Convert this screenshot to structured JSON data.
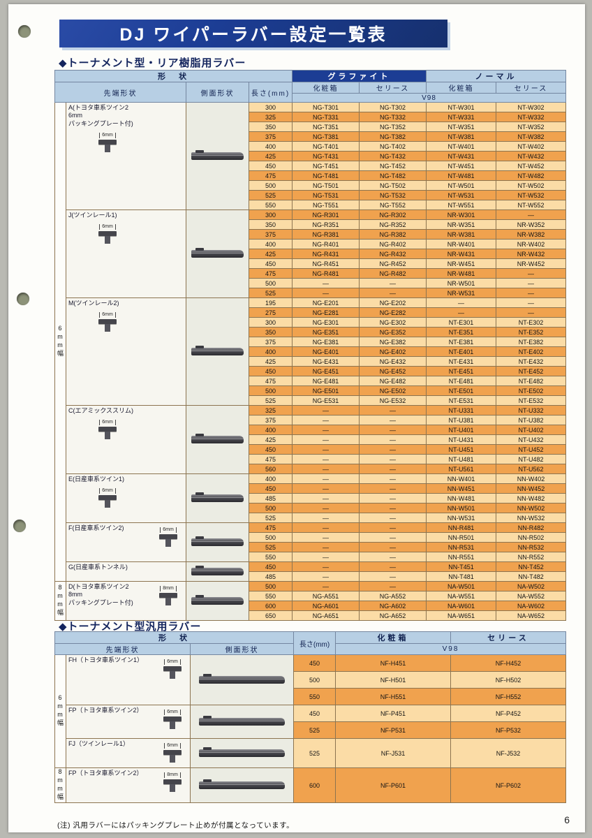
{
  "page": {
    "title": "DJ ワイパーラバー設定一覧表",
    "page_number": "6",
    "footnote": "(注) 汎用ラバーにはパッキングプレート止めが付属となっています。"
  },
  "colors": {
    "banner_navy": "#1c3d94",
    "header_blue": "#b7cfe4",
    "row_orange_dark": "#f0a24e",
    "row_orange_light": "#fbdca6"
  },
  "table1": {
    "section_title": "◆トーナメント型・リア樹脂用ラバー",
    "headers": {
      "shape": "形　状",
      "tip": "先端形状",
      "side": "側面形状",
      "length": "長さ(mm)",
      "graphite": "グラファイト",
      "normal": "ノーマル",
      "box": "化粧箱",
      "series": "セリース",
      "v98": "V98"
    },
    "width_bands": [
      {
        "label": "6mm幅",
        "group_indexes": [
          0,
          1,
          2,
          3,
          4,
          5,
          6
        ]
      },
      {
        "label": "8mm幅",
        "group_indexes": [
          7
        ]
      }
    ],
    "groups": [
      {
        "label": "A(トヨタ車系ツイン2\n6mm\nパッキングプレート付)",
        "tip_size": "6mm",
        "rows": [
          {
            "len": "300",
            "codes": [
              "NG-T301",
              "NG-T302",
              "NT-W301",
              "NT-W302"
            ]
          },
          {
            "len": "325",
            "codes": [
              "NG-T331",
              "NG-T332",
              "NT-W331",
              "NT-W332"
            ]
          },
          {
            "len": "350",
            "codes": [
              "NG-T351",
              "NG-T352",
              "NT-W351",
              "NT-W352"
            ]
          },
          {
            "len": "375",
            "codes": [
              "NG-T381",
              "NG-T382",
              "NT-W381",
              "NT-W382"
            ]
          },
          {
            "len": "400",
            "codes": [
              "NG-T401",
              "NG-T402",
              "NT-W401",
              "NT-W402"
            ]
          },
          {
            "len": "425",
            "codes": [
              "NG-T431",
              "NG-T432",
              "NT-W431",
              "NT-W432"
            ]
          },
          {
            "len": "450",
            "codes": [
              "NG-T451",
              "NG-T452",
              "NT-W451",
              "NT-W452"
            ]
          },
          {
            "len": "475",
            "codes": [
              "NG-T481",
              "NG-T482",
              "NT-W481",
              "NT-W482"
            ]
          },
          {
            "len": "500",
            "codes": [
              "NG-T501",
              "NG-T502",
              "NT-W501",
              "NT-W502"
            ]
          },
          {
            "len": "525",
            "codes": [
              "NG-T531",
              "NG-T532",
              "NT-W531",
              "NT-W532"
            ]
          },
          {
            "len": "550",
            "codes": [
              "NG-T551",
              "NG-T552",
              "NT-W551",
              "NT-W552"
            ]
          }
        ]
      },
      {
        "label": "J(ツインレール1)",
        "tip_size": "6mm",
        "rows": [
          {
            "len": "300",
            "codes": [
              "NG-R301",
              "NG-R302",
              "NR-W301",
              "—"
            ]
          },
          {
            "len": "350",
            "codes": [
              "NG-R351",
              "NG-R352",
              "NR-W351",
              "NR-W352"
            ]
          },
          {
            "len": "375",
            "codes": [
              "NG-R381",
              "NG-R382",
              "NR-W381",
              "NR-W382"
            ]
          },
          {
            "len": "400",
            "codes": [
              "NG-R401",
              "NG-R402",
              "NR-W401",
              "NR-W402"
            ]
          },
          {
            "len": "425",
            "codes": [
              "NG-R431",
              "NG-R432",
              "NR-W431",
              "NR-W432"
            ]
          },
          {
            "len": "450",
            "codes": [
              "NG-R451",
              "NG-R452",
              "NR-W451",
              "NR-W452"
            ]
          },
          {
            "len": "475",
            "codes": [
              "NG-R481",
              "NG-R482",
              "NR-W481",
              "—"
            ]
          },
          {
            "len": "500",
            "codes": [
              "—",
              "—",
              "NR-W501",
              "—"
            ]
          },
          {
            "len": "525",
            "codes": [
              "—",
              "—",
              "NR-W531",
              "—"
            ]
          }
        ]
      },
      {
        "label": "M(ツインレール2)",
        "tip_size": "6mm",
        "rows": [
          {
            "len": "195",
            "codes": [
              "NG-E201",
              "NG-E202",
              "—",
              "—"
            ]
          },
          {
            "len": "275",
            "codes": [
              "NG-E281",
              "NG-E282",
              "—",
              "—"
            ]
          },
          {
            "len": "300",
            "codes": [
              "NG-E301",
              "NG-E302",
              "NT-E301",
              "NT-E302"
            ]
          },
          {
            "len": "350",
            "codes": [
              "NG-E351",
              "NG-E352",
              "NT-E351",
              "NT-E352"
            ]
          },
          {
            "len": "375",
            "codes": [
              "NG-E381",
              "NG-E382",
              "NT-E381",
              "NT-E382"
            ]
          },
          {
            "len": "400",
            "codes": [
              "NG-E401",
              "NG-E402",
              "NT-E401",
              "NT-E402"
            ]
          },
          {
            "len": "425",
            "codes": [
              "NG-E431",
              "NG-E432",
              "NT-E431",
              "NT-E432"
            ]
          },
          {
            "len": "450",
            "codes": [
              "NG-E451",
              "NG-E452",
              "NT-E451",
              "NT-E452"
            ]
          },
          {
            "len": "475",
            "codes": [
              "NG-E481",
              "NG-E482",
              "NT-E481",
              "NT-E482"
            ]
          },
          {
            "len": "500",
            "codes": [
              "NG-E501",
              "NG-E502",
              "NT-E501",
              "NT-E502"
            ]
          },
          {
            "len": "525",
            "codes": [
              "NG-E531",
              "NG-E532",
              "NT-E531",
              "NT-E532"
            ]
          }
        ]
      },
      {
        "label": "C(エアミックススリム)",
        "tip_size": "6mm",
        "rows": [
          {
            "len": "325",
            "codes": [
              "—",
              "—",
              "NT-U331",
              "NT-U332"
            ]
          },
          {
            "len": "375",
            "codes": [
              "—",
              "—",
              "NT-U381",
              "NT-U382"
            ]
          },
          {
            "len": "400",
            "codes": [
              "—",
              "—",
              "NT-U401",
              "NT-U402"
            ]
          },
          {
            "len": "425",
            "codes": [
              "—",
              "—",
              "NT-U431",
              "NT-U432"
            ]
          },
          {
            "len": "450",
            "codes": [
              "—",
              "—",
              "NT-U451",
              "NT-U452"
            ]
          },
          {
            "len": "475",
            "codes": [
              "—",
              "—",
              "NT-U481",
              "NT-U482"
            ]
          },
          {
            "len": "560",
            "codes": [
              "—",
              "—",
              "NT-U561",
              "NT-U562"
            ]
          }
        ]
      },
      {
        "label": "E(日産車系ツイン1)",
        "tip_size": "6mm",
        "rows": [
          {
            "len": "400",
            "codes": [
              "—",
              "—",
              "NN-W401",
              "NN-W402"
            ]
          },
          {
            "len": "450",
            "codes": [
              "—",
              "—",
              "NN-W451",
              "NN-W452"
            ]
          },
          {
            "len": "485",
            "codes": [
              "—",
              "—",
              "NN-W481",
              "NN-W482"
            ]
          },
          {
            "len": "500",
            "codes": [
              "—",
              "—",
              "NN-W501",
              "NN-W502"
            ]
          },
          {
            "len": "525",
            "codes": [
              "—",
              "—",
              "NN-W531",
              "NN-W532"
            ]
          }
        ]
      },
      {
        "label": "F(日産車系ツイン2)",
        "tip_size": "6mm",
        "rows": [
          {
            "len": "475",
            "codes": [
              "—",
              "—",
              "NN-R481",
              "NN-R482"
            ]
          },
          {
            "len": "500",
            "codes": [
              "—",
              "—",
              "NN-R501",
              "NN-R502"
            ]
          },
          {
            "len": "525",
            "codes": [
              "—",
              "—",
              "NN-R531",
              "NN-R532"
            ]
          },
          {
            "len": "550",
            "codes": [
              "—",
              "—",
              "NN-R551",
              "NN-R552"
            ]
          }
        ]
      },
      {
        "label": "G(日産車系トンネル)",
        "tip_size": null,
        "rows": [
          {
            "len": "450",
            "codes": [
              "—",
              "—",
              "NN-T451",
              "NN-T452"
            ]
          },
          {
            "len": "485",
            "codes": [
              "—",
              "—",
              "NN-T481",
              "NN-T482"
            ]
          }
        ]
      },
      {
        "label": "D(トヨタ車系ツイン2\n8mm\nパッキングプレート付)",
        "tip_size": "8mm",
        "rows": [
          {
            "len": "500",
            "codes": [
              "—",
              "—",
              "NA-W501",
              "NA-W502"
            ]
          },
          {
            "len": "550",
            "codes": [
              "NG-A551",
              "NG-A552",
              "NA-W551",
              "NA-W552"
            ]
          },
          {
            "len": "600",
            "codes": [
              "NG-A601",
              "NG-A602",
              "NA-W601",
              "NA-W602"
            ]
          },
          {
            "len": "650",
            "codes": [
              "NG-A651",
              "NG-A652",
              "NA-W651",
              "NA-W652"
            ]
          }
        ]
      }
    ]
  },
  "table2": {
    "section_title": "◆トーナメント型汎用ラバー",
    "headers": {
      "shape": "形　状",
      "tip": "先端形状",
      "side": "側面形状",
      "length": "長さ(mm)",
      "box": "化粧箱",
      "series": "セリース",
      "v98": "V98"
    },
    "width_bands": [
      {
        "label": "6mm幅",
        "group_indexes": [
          0,
          1,
          2
        ]
      },
      {
        "label": "8mm幅",
        "group_indexes": [
          3
        ]
      }
    ],
    "groups": [
      {
        "label": "FH（トヨタ車系ツイン1）",
        "tip_size": "6mm",
        "rows": [
          {
            "len": "450",
            "codes": [
              "NF-H451",
              "NF-H452"
            ]
          },
          {
            "len": "500",
            "codes": [
              "NF-H501",
              "NF-H502"
            ]
          },
          {
            "len": "550",
            "codes": [
              "NF-H551",
              "NF-H552"
            ]
          }
        ]
      },
      {
        "label": "FP（トヨタ車系ツイン2）",
        "tip_size": "6mm",
        "rows": [
          {
            "len": "450",
            "codes": [
              "NF-P451",
              "NF-P452"
            ]
          },
          {
            "len": "525",
            "codes": [
              "NF-P531",
              "NF-P532"
            ]
          }
        ]
      },
      {
        "label": "FJ（ツインレール1）",
        "tip_size": "6mm",
        "rows": [
          {
            "len": "525",
            "codes": [
              "NF-J531",
              "NF-J532"
            ]
          }
        ]
      },
      {
        "label": "FP（トヨタ車系ツイン2）",
        "tip_size": "8mm",
        "rows": [
          {
            "len": "600",
            "codes": [
              "NF-P601",
              "NF-P602"
            ]
          }
        ]
      }
    ]
  }
}
